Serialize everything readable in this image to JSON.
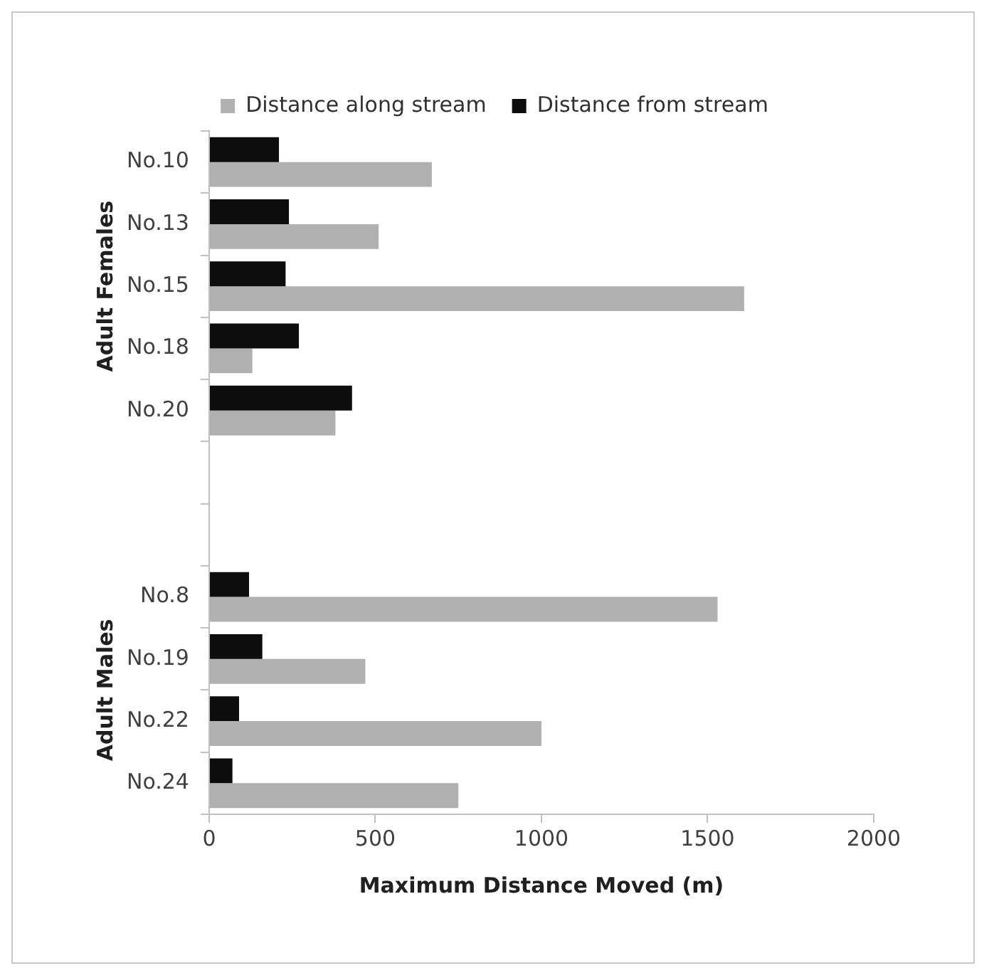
{
  "chart_data": {
    "type": "bar",
    "orientation": "horizontal",
    "xlabel": "Maximum Distance Moved (m)",
    "categories": [
      "No.10",
      "No.13",
      "No.15",
      "No.18",
      "No.20",
      null,
      null,
      "No.8",
      "No.19",
      "No.22",
      "No.24"
    ],
    "series": [
      {
        "name": "Distance along stream",
        "color": "#b0b0b0",
        "values": [
          670,
          510,
          1610,
          130,
          380,
          null,
          null,
          1530,
          470,
          1000,
          750
        ]
      },
      {
        "name": "Distance from stream",
        "color": "#0d0d0d",
        "values": [
          210,
          240,
          230,
          270,
          430,
          null,
          null,
          120,
          160,
          90,
          70
        ]
      }
    ],
    "xlim": [
      0,
      2000
    ],
    "xticks": [
      0,
      500,
      1000,
      1500,
      2000
    ],
    "grid": false,
    "legend": "top",
    "annotations": [
      "Adult Females",
      "Adult Males"
    ]
  }
}
